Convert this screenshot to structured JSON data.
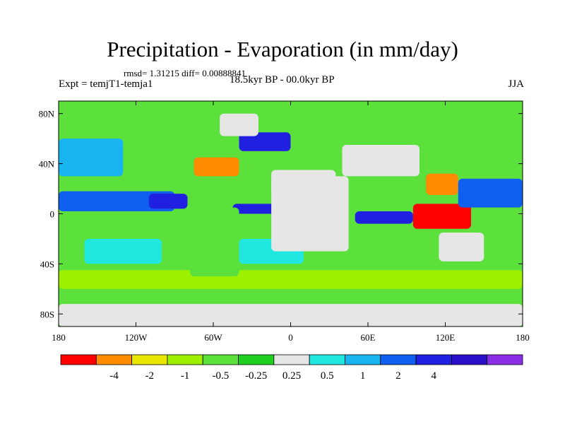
{
  "title": "Precipitation - Evaporation (in mm/day)",
  "stats": "rmsd= 1.31215 diff= 0.00888841",
  "experiment": "Expt = temjT1-temja1",
  "period": "18.5kyr BP - 00.0kyr BP",
  "season": "JJA",
  "axes": {
    "lat_labels": [
      "80N",
      "40N",
      "0",
      "40S",
      "80S"
    ],
    "lat_values": [
      80,
      40,
      0,
      -40,
      -80
    ],
    "lon_labels": [
      "180",
      "120W",
      "60W",
      "0",
      "60E",
      "120E",
      "180"
    ],
    "lon_values": [
      -180,
      -120,
      -60,
      0,
      60,
      120,
      180
    ],
    "lat_range": [
      -90,
      90
    ],
    "lon_range": [
      -180,
      180
    ]
  },
  "colorbar": {
    "colors": [
      "#ff0000",
      "#ff8c00",
      "#e8e600",
      "#9cf000",
      "#5ce03c",
      "#20d020",
      "#e6e6e6",
      "#20e8e0",
      "#18b4f0",
      "#1060f0",
      "#2020e0",
      "#2a10c8",
      "#8a2ee6"
    ],
    "labels": [
      "-4",
      "-2",
      "-1",
      "-0.5",
      "-0.25",
      "0.25",
      "0.5",
      "1",
      "2",
      "4"
    ]
  },
  "regions": [
    {
      "name": "southern-ocean-band",
      "lon": [
        -180,
        180
      ],
      "lat": [
        -60,
        -45
      ],
      "color": "#9cf000"
    },
    {
      "name": "arctic-band",
      "lon": [
        -180,
        180
      ],
      "lat": [
        70,
        88
      ],
      "color": "#5ce03c"
    },
    {
      "name": "north-pacific",
      "lon": [
        -180,
        -130
      ],
      "lat": [
        30,
        60
      ],
      "color": "#18b4f0"
    },
    {
      "name": "tropical-pacific-blue",
      "lon": [
        -180,
        -90
      ],
      "lat": [
        2,
        18
      ],
      "color": "#1060f0"
    },
    {
      "name": "east-pacific-wet",
      "lon": [
        -110,
        -80
      ],
      "lat": [
        4,
        16
      ],
      "color": "#2020e0"
    },
    {
      "name": "equatorial-atlantic-wet",
      "lon": [
        -45,
        -10
      ],
      "lat": [
        0,
        8
      ],
      "color": "#2020e0"
    },
    {
      "name": "equatorial-indian-wet",
      "lon": [
        50,
        95
      ],
      "lat": [
        -8,
        2
      ],
      "color": "#2020e0"
    },
    {
      "name": "gulf-stream-dry",
      "lon": [
        -75,
        -40
      ],
      "lat": [
        30,
        45
      ],
      "color": "#ff8c00"
    },
    {
      "name": "maritime-continent-dry",
      "lon": [
        95,
        140
      ],
      "lat": [
        -12,
        8
      ],
      "color": "#ff0000"
    },
    {
      "name": "south-china-dry",
      "lon": [
        105,
        130
      ],
      "lat": [
        15,
        32
      ],
      "color": "#ff8c00"
    },
    {
      "name": "west-pacific-wet",
      "lon": [
        130,
        180
      ],
      "lat": [
        5,
        28
      ],
      "color": "#1060f0"
    },
    {
      "name": "south-pacific-cyan",
      "lon": [
        -160,
        -100
      ],
      "lat": [
        -40,
        -20
      ],
      "color": "#20e8e0"
    },
    {
      "name": "south-atlantic-cyan",
      "lon": [
        -40,
        10
      ],
      "lat": [
        -40,
        -20
      ],
      "color": "#20e8e0"
    },
    {
      "name": "north-atlantic-blue",
      "lon": [
        -40,
        0
      ],
      "lat": [
        50,
        65
      ],
      "color": "#2020e0"
    },
    {
      "name": "greenland-land",
      "lon": [
        -55,
        -25
      ],
      "lat": [
        62,
        80
      ],
      "color": "#e6e6e6"
    },
    {
      "name": "africa-land",
      "lon": [
        -15,
        45
      ],
      "lat": [
        -30,
        30
      ],
      "color": "#e6e6e6"
    },
    {
      "name": "sahara-land",
      "lon": [
        -15,
        35
      ],
      "lat": [
        15,
        35
      ],
      "color": "#e6e6e6"
    },
    {
      "name": "australia-land",
      "lon": [
        115,
        150
      ],
      "lat": [
        -38,
        -15
      ],
      "color": "#e6e6e6"
    },
    {
      "name": "south-america-land",
      "lon": [
        -78,
        -40
      ],
      "lat": [
        -50,
        5
      ],
      "color": "#5ce03c"
    },
    {
      "name": "asia-land",
      "lon": [
        40,
        100
      ],
      "lat": [
        30,
        55
      ],
      "color": "#e6e6e6"
    },
    {
      "name": "antarctica-land",
      "lon": [
        -180,
        180
      ],
      "lat": [
        -90,
        -72
      ],
      "color": "#e6e6e6"
    }
  ]
}
